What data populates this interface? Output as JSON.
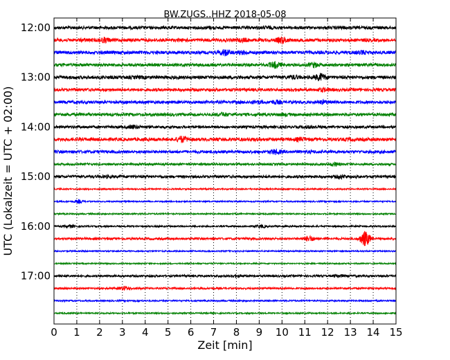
{
  "chart_data": {
    "type": "line",
    "title": "BW.ZUGS..HHZ 2018-05-08",
    "xlabel": "Zeit  [min]",
    "ylabel": "UTC (Lokalzeit = UTC + 02:00)",
    "xlim": [
      0,
      15
    ],
    "x_ticks": [
      "0",
      "1",
      "2",
      "3",
      "4",
      "5",
      "6",
      "7",
      "8",
      "9",
      "10",
      "11",
      "12",
      "13",
      "14",
      "15"
    ],
    "y_tick_labels": [
      "12:00",
      "13:00",
      "14:00",
      "15:00",
      "16:00",
      "17:00"
    ],
    "grid": "vertical-dotted",
    "colors": [
      "#000000",
      "#ff0000",
      "#0000ff",
      "#008000"
    ],
    "traces": [
      {
        "start": "12:00",
        "amp": 2.2,
        "events": [
          [
            6.8,
            3
          ],
          [
            9.4,
            3
          ],
          [
            12.5,
            3
          ]
        ]
      },
      {
        "start": "12:15",
        "amp": 2.4,
        "events": [
          [
            1.3,
            3
          ],
          [
            2.2,
            5
          ],
          [
            8.3,
            4
          ],
          [
            10.0,
            6
          ]
        ]
      },
      {
        "start": "12:30",
        "amp": 2.4,
        "events": [
          [
            7.5,
            6
          ],
          [
            8.3,
            4
          ],
          [
            13.5,
            4
          ]
        ]
      },
      {
        "start": "12:45",
        "amp": 2.2,
        "events": [
          [
            9.7,
            6
          ],
          [
            11.4,
            5
          ]
        ]
      },
      {
        "start": "13:00",
        "amp": 2.4,
        "events": [
          [
            3.8,
            3
          ],
          [
            10.5,
            4
          ],
          [
            11.7,
            7
          ]
        ]
      },
      {
        "start": "13:15",
        "amp": 2.2,
        "events": [
          [
            10.5,
            3
          ],
          [
            11.8,
            4
          ]
        ]
      },
      {
        "start": "13:30",
        "amp": 2.2,
        "events": [
          [
            8.9,
            4
          ],
          [
            9.7,
            4
          ],
          [
            11.8,
            4
          ]
        ]
      },
      {
        "start": "13:45",
        "amp": 2.2,
        "events": [
          [
            7.4,
            4
          ],
          [
            10.1,
            3
          ]
        ]
      },
      {
        "start": "14:00",
        "amp": 2.0,
        "events": [
          [
            3.5,
            4
          ],
          [
            11.2,
            3
          ]
        ]
      },
      {
        "start": "14:15",
        "amp": 2.4,
        "events": [
          [
            5.6,
            6
          ],
          [
            8.7,
            3
          ],
          [
            10.8,
            4
          ],
          [
            12.9,
            3
          ]
        ]
      },
      {
        "start": "14:30",
        "amp": 2.2,
        "events": [
          [
            9.7,
            5
          ],
          [
            11.3,
            3
          ]
        ]
      },
      {
        "start": "14:45",
        "amp": 1.6,
        "events": [
          [
            12.3,
            4
          ]
        ]
      },
      {
        "start": "15:00",
        "amp": 2.0,
        "events": [
          [
            2.3,
            3
          ],
          [
            12.6,
            4
          ]
        ]
      },
      {
        "start": "15:15",
        "amp": 1.0,
        "events": []
      },
      {
        "start": "15:30",
        "amp": 1.0,
        "events": [
          [
            1.1,
            3
          ]
        ]
      },
      {
        "start": "15:45",
        "amp": 1.0,
        "events": []
      },
      {
        "start": "16:00",
        "amp": 1.2,
        "events": [
          [
            0.7,
            3
          ],
          [
            9.1,
            3
          ]
        ]
      },
      {
        "start": "16:15",
        "amp": 1.6,
        "events": [
          [
            11.2,
            5
          ],
          [
            13.65,
            12
          ]
        ]
      },
      {
        "start": "16:30",
        "amp": 1.0,
        "events": []
      },
      {
        "start": "16:45",
        "amp": 0.9,
        "events": []
      },
      {
        "start": "17:00",
        "amp": 1.6,
        "events": [
          [
            8.0,
            3
          ],
          [
            12.5,
            3
          ]
        ]
      },
      {
        "start": "17:15",
        "amp": 1.3,
        "events": [
          [
            3.1,
            4
          ]
        ]
      },
      {
        "start": "17:30",
        "amp": 1.1,
        "events": []
      },
      {
        "start": "17:45",
        "amp": 1.0,
        "events": []
      }
    ]
  }
}
